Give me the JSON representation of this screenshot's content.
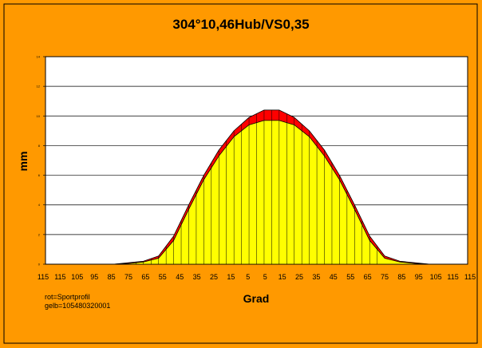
{
  "chart_data": {
    "type": "area",
    "title": "304°10,46Hub/VS0,35",
    "xlabel": "Grad",
    "ylabel": "mm",
    "x_tick_labels": [
      "115",
      "115",
      "105",
      "95",
      "85",
      "75",
      "65",
      "55",
      "45",
      "35",
      "25",
      "15",
      "5",
      "5",
      "15",
      "25",
      "35",
      "45",
      "55",
      "65",
      "75",
      "85",
      "95",
      "105",
      "115",
      "115"
    ],
    "y_tick_labels": [
      "0",
      "2",
      "4",
      "6",
      "8",
      "10",
      "12",
      "14"
    ],
    "ylim": [
      0,
      14
    ],
    "grid": true,
    "legend_lines": [
      "rot=Sportprofil",
      "gelb=105480320001"
    ],
    "colors": {
      "background": "#FF9900",
      "plot": "#FFFFFF",
      "series_red": "#FF0000",
      "series_yellow": "#FFFF00",
      "outline": "#000000"
    },
    "x_positions": [
      -135,
      -125,
      -115,
      -105,
      -95,
      -85,
      -75,
      -65,
      -55,
      -45,
      -35,
      -25,
      -15,
      -5,
      5,
      15,
      25,
      35,
      45,
      55,
      65,
      75,
      85,
      95,
      105,
      115,
      125,
      135
    ],
    "series": [
      {
        "name": "rot",
        "values": [
          0,
          0,
          0,
          0,
          0,
          0.1,
          0.2,
          0.55,
          1.9,
          4.0,
          6.0,
          7.7,
          9.0,
          9.9,
          10.4,
          10.4,
          9.9,
          9.0,
          7.7,
          6.0,
          4.0,
          1.9,
          0.55,
          0.2,
          0.1,
          0,
          0,
          0
        ]
      },
      {
        "name": "gelb",
        "values": [
          0,
          0,
          0,
          0,
          0,
          0.05,
          0.15,
          0.4,
          1.6,
          3.7,
          5.7,
          7.3,
          8.6,
          9.4,
          9.7,
          9.7,
          9.4,
          8.6,
          7.3,
          5.7,
          3.7,
          1.6,
          0.4,
          0.15,
          0.05,
          0,
          0,
          0
        ]
      }
    ]
  }
}
